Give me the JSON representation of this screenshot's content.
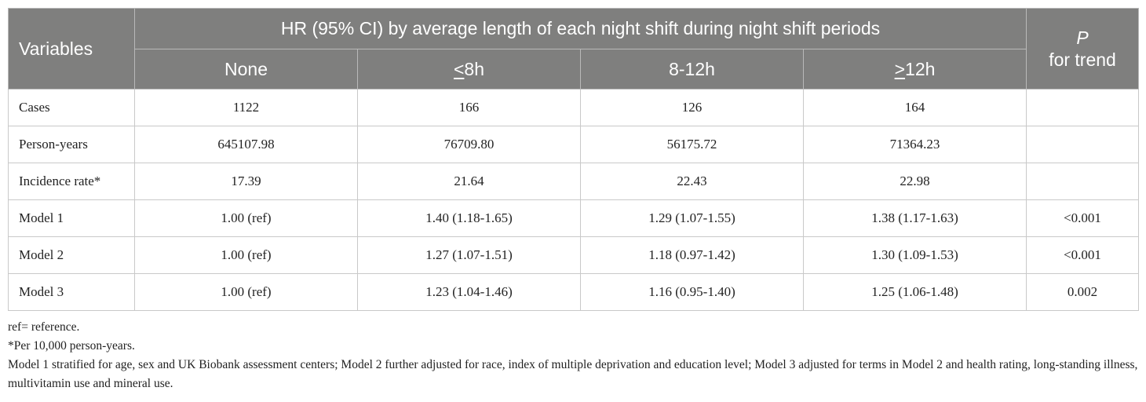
{
  "table": {
    "header": {
      "variables": "Variables",
      "group_title": "HR (95% CI) by average length of each night shift during night shift periods",
      "p_label": "P",
      "p_sub": "for trend",
      "sub_columns": [
        {
          "prefix": "",
          "underlined": "",
          "rest": "None"
        },
        {
          "prefix": "",
          "underlined": "<",
          "rest": "8h"
        },
        {
          "prefix": "",
          "underlined": "",
          "rest": "8-12h"
        },
        {
          "prefix": "",
          "underlined": ">",
          "rest": "12h"
        }
      ]
    },
    "rows": [
      {
        "label": "Cases",
        "cells": [
          "1122",
          "166",
          "126",
          "164"
        ],
        "p": ""
      },
      {
        "label": "Person-years",
        "cells": [
          "645107.98",
          "76709.80",
          "56175.72",
          "71364.23"
        ],
        "p": ""
      },
      {
        "label": "Incidence rate*",
        "cells": [
          "17.39",
          "21.64",
          "22.43",
          "22.98"
        ],
        "p": ""
      },
      {
        "label": "Model 1",
        "cells": [
          "1.00 (ref)",
          "1.40 (1.18-1.65)",
          "1.29 (1.07-1.55)",
          "1.38 (1.17-1.63)"
        ],
        "p": "<0.001"
      },
      {
        "label": "Model 2",
        "cells": [
          "1.00 (ref)",
          "1.27 (1.07-1.51)",
          "1.18 (0.97-1.42)",
          "1.30 (1.09-1.53)"
        ],
        "p": "<0.001"
      },
      {
        "label": "Model 3",
        "cells": [
          "1.00 (ref)",
          "1.23 (1.04-1.46)",
          "1.16 (0.95-1.40)",
          "1.25 (1.06-1.48)"
        ],
        "p": "0.002"
      }
    ]
  },
  "notes": {
    "ref": "ref= reference.",
    "per": "*Per 10,000 person-years.",
    "models": "Model 1 stratified for age, sex and UK Biobank assessment centers; Model 2 further adjusted for race, index of multiple deprivation and education level; Model 3 adjusted for terms in Model 2 and health rating, long-standing illness, multivitamin use and mineral use."
  }
}
